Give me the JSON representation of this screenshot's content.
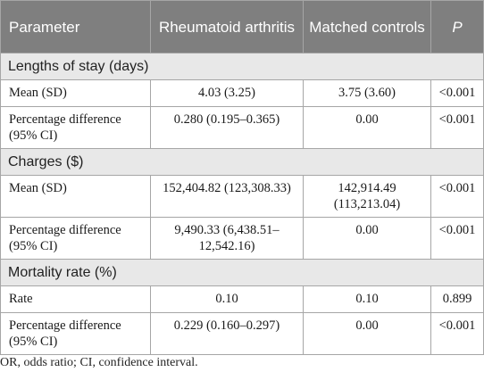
{
  "header": {
    "parameter": "Parameter",
    "ra": "Rheumatoid arthritis",
    "controls": "Matched controls",
    "p": "P"
  },
  "sections": [
    {
      "title": "Lengths of stay (days)",
      "rows": [
        {
          "label": "Mean (SD)",
          "ra": "4.03 (3.25)",
          "controls": "3.75 (3.60)",
          "p": "<0.001"
        },
        {
          "label": "Percentage difference (95% CI)",
          "ra": "0.280 (0.195–0.365)",
          "controls": "0.00",
          "p": "<0.001"
        }
      ]
    },
    {
      "title": "Charges ($)",
      "rows": [
        {
          "label": "Mean (SD)",
          "ra": "152,404.82 (123,308.33)",
          "controls": "142,914.49 (113,213.04)",
          "p": "<0.001"
        },
        {
          "label": "Percentage difference (95% CI)",
          "ra": "9,490.33 (6,438.51–12,542.16)",
          "controls": "0.00",
          "p": "<0.001"
        }
      ]
    },
    {
      "title": "Mortality rate (%)",
      "rows": [
        {
          "label": "Rate",
          "ra": "0.10",
          "controls": "0.10",
          "p": "0.899"
        },
        {
          "label": "Percentage difference (95% CI)",
          "ra": "0.229 (0.160–0.297)",
          "controls": "0.00",
          "p": "<0.001"
        }
      ]
    }
  ],
  "footnote": "OR, odds ratio; CI, confidence interval."
}
